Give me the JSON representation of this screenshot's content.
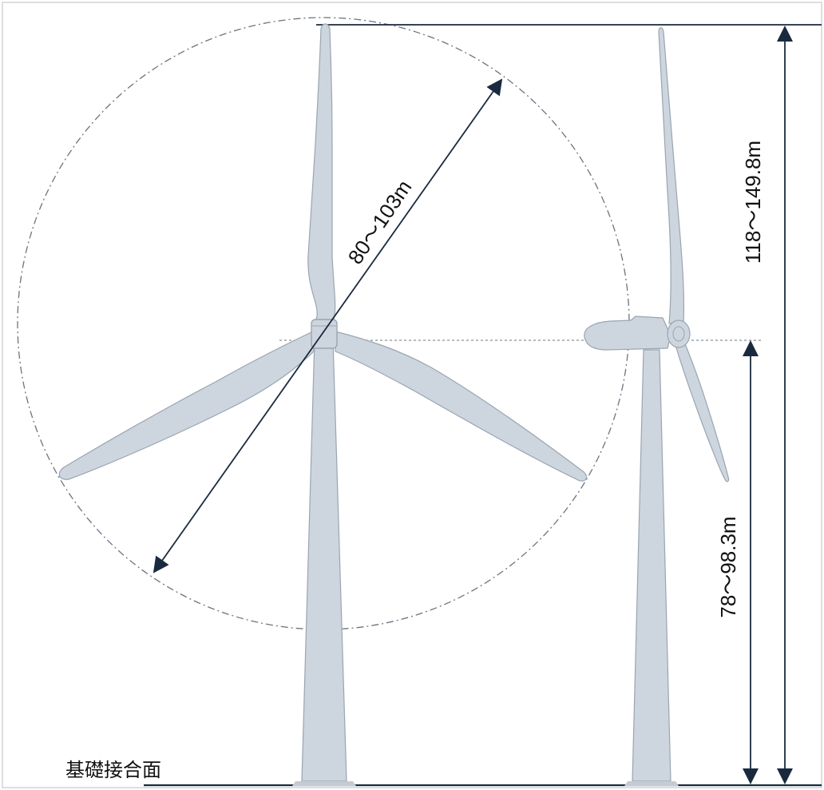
{
  "labels": {
    "rotor_diameter": "80〜103m",
    "total_height": "118〜149.8m",
    "hub_height": "78〜98.3m",
    "foundation": "基礎接合面"
  },
  "colors": {
    "turbine_fill": "#cdd5de",
    "turbine_stroke": "#9aa5b1",
    "dimension_line": "#1a2a3e",
    "guide_line": "#4a5566",
    "background": "#ffffff"
  }
}
